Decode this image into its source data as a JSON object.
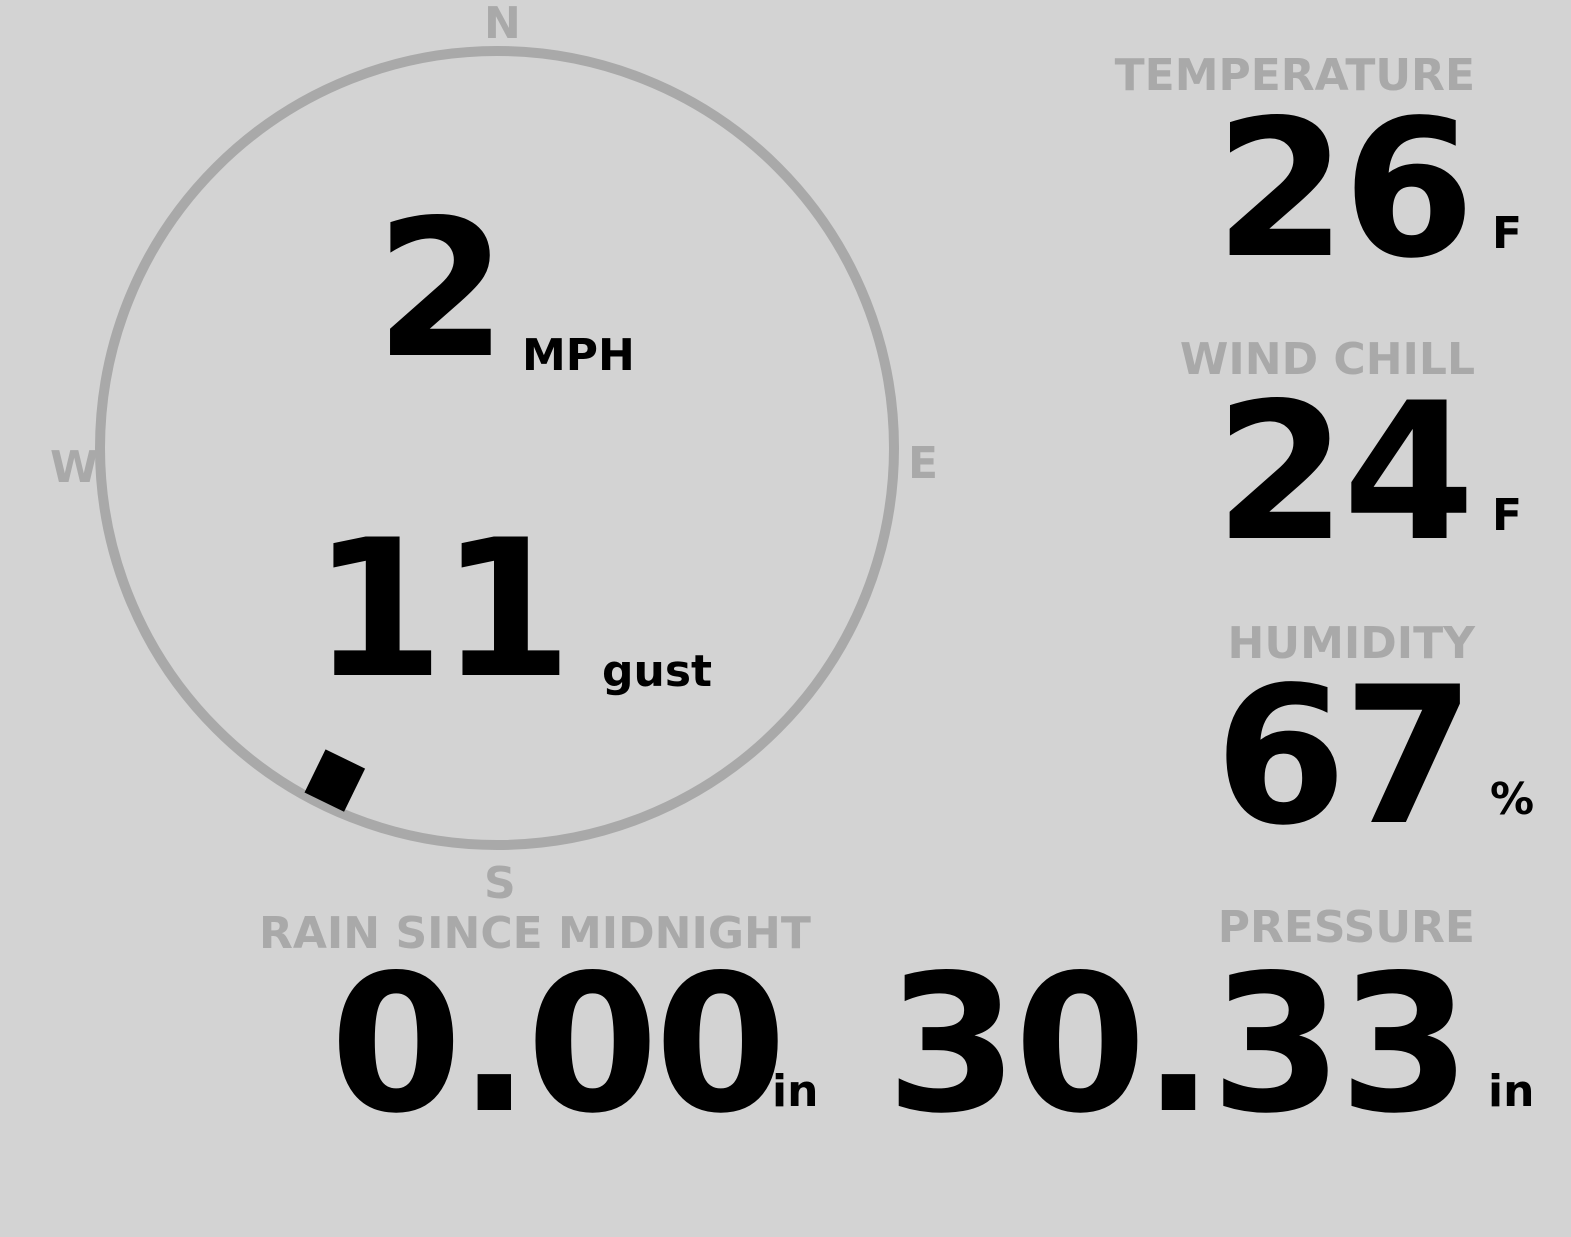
{
  "compass": {
    "north": "N",
    "south": "S",
    "east": "E",
    "west": "W",
    "direction_degrees": 206,
    "ring_color": "#a9a9a9"
  },
  "wind": {
    "speed": "2",
    "speed_unit": "MPH",
    "gust": "11",
    "gust_unit": "gust"
  },
  "temperature": {
    "label": "TEMPERATURE",
    "value": "26",
    "unit": "F"
  },
  "wind_chill": {
    "label": "WIND CHILL",
    "value": "24",
    "unit": "F"
  },
  "humidity": {
    "label": "HUMIDITY",
    "value": "67",
    "unit": "%"
  },
  "rain": {
    "label": "RAIN SINCE MIDNIGHT",
    "value": "0.00",
    "unit": "in"
  },
  "pressure": {
    "label": "PRESSURE",
    "value": "30.33",
    "unit": "in"
  },
  "colors": {
    "background": "#d3d3d3",
    "label": "#a9a9a9",
    "value": "#000000"
  }
}
